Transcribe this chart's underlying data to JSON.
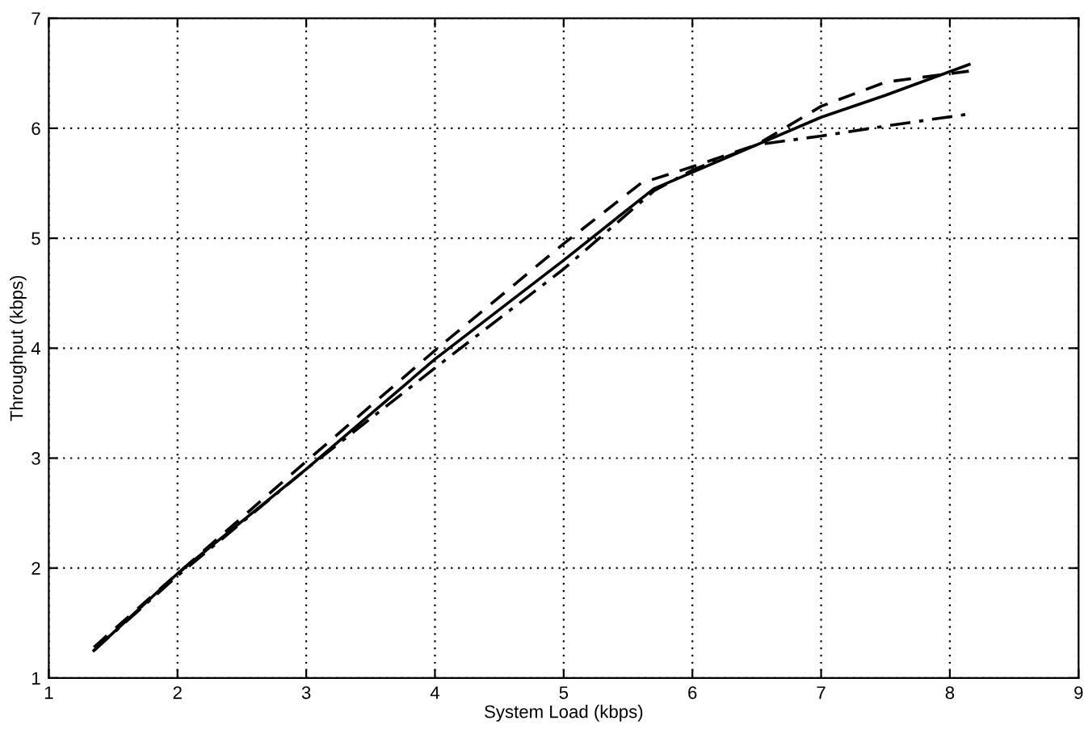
{
  "chart_data": {
    "type": "line",
    "xlabel": "System Load (kbps)",
    "ylabel": "Throughput (kbps)",
    "xlim": [
      1,
      9
    ],
    "ylim": [
      1,
      7
    ],
    "xticks": [
      1,
      2,
      3,
      4,
      5,
      6,
      7,
      8,
      9
    ],
    "yticks": [
      1,
      2,
      3,
      4,
      5,
      6,
      7
    ],
    "grid": true,
    "legend": false,
    "series": [
      {
        "color": "#000000",
        "line_style": "solid",
        "x": [
          1.35,
          2,
          3,
          4,
          5,
          5.7,
          6,
          6.5,
          7,
          7.5,
          8.15
        ],
        "values": [
          1.25,
          1.95,
          2.9,
          3.9,
          4.8,
          5.45,
          5.6,
          5.85,
          6.1,
          6.3,
          6.58
        ]
      },
      {
        "color": "#000000",
        "line_style": "dashed",
        "x": [
          1.35,
          2,
          3,
          4,
          5,
          5.6,
          6,
          6.5,
          7,
          7.5,
          8.15
        ],
        "values": [
          1.28,
          1.95,
          2.97,
          3.98,
          4.95,
          5.5,
          5.65,
          5.85,
          6.2,
          6.42,
          6.52
        ]
      },
      {
        "color": "#000000",
        "line_style": "dashdot",
        "x": [
          1.35,
          2,
          3,
          4,
          5,
          5.7,
          6,
          6.5,
          7,
          7.5,
          8.15
        ],
        "values": [
          1.25,
          1.93,
          2.9,
          3.82,
          4.72,
          5.43,
          5.62,
          5.85,
          5.93,
          6.02,
          6.13
        ]
      }
    ]
  }
}
